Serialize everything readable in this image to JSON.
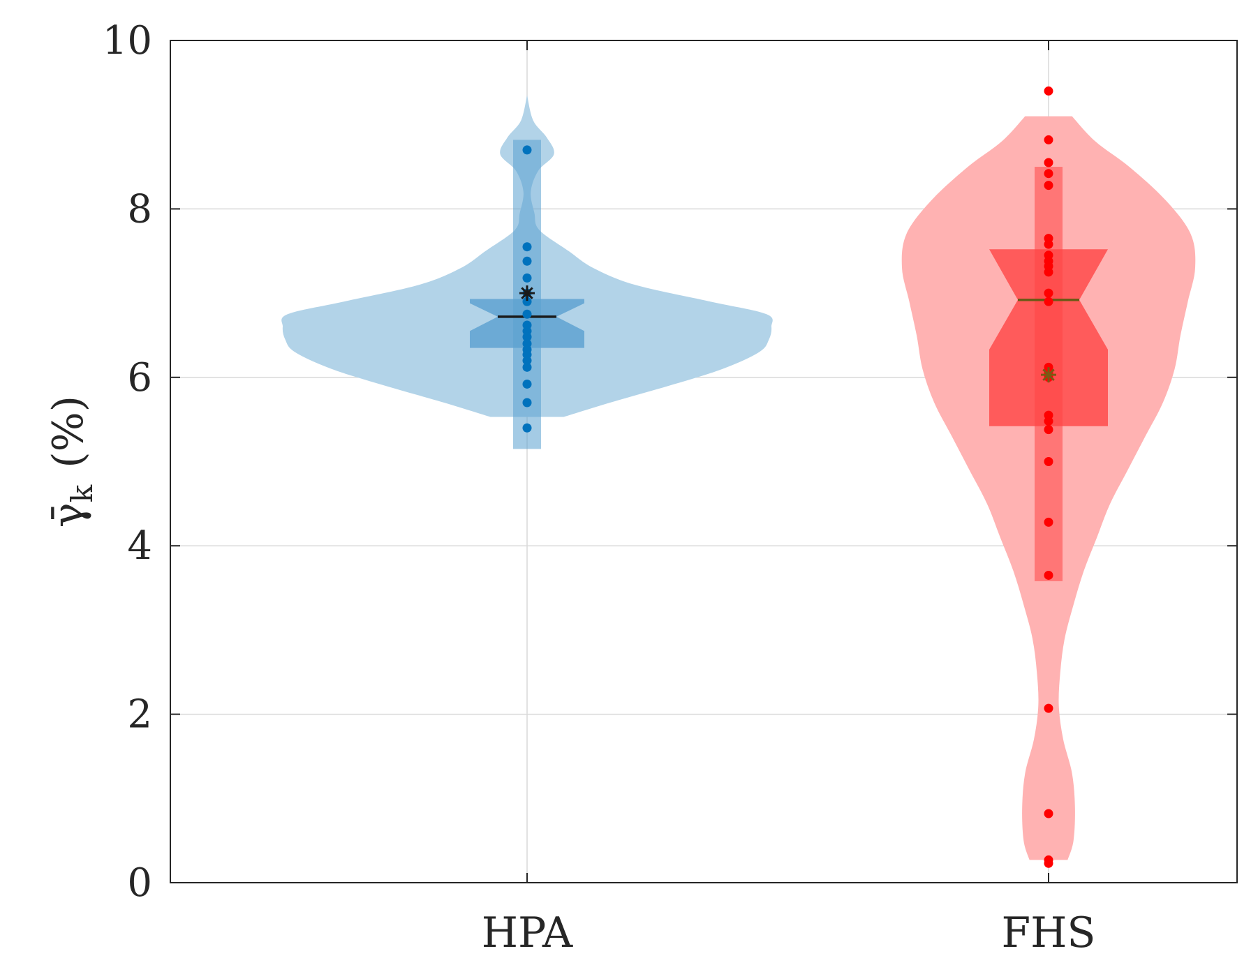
{
  "chart_data": {
    "type": "violin",
    "title": "",
    "xlabel": "",
    "ylabel": "γ̄",
    "ylabel_subscript": "k",
    "ylabel_unit": "(%)",
    "ylim": [
      0,
      10
    ],
    "yticks": [
      0,
      2,
      4,
      6,
      8,
      10
    ],
    "grid": true,
    "categories": [
      "HPA",
      "FHS"
    ],
    "series": [
      {
        "name": "HPA",
        "color": "#0072bd",
        "violin_color": "#b2d3e8",
        "box_color": "#5aa0d0",
        "points": [
          8.7,
          7.55,
          7.38,
          7.18,
          7.0,
          6.9,
          6.75,
          6.62,
          6.55,
          6.48,
          6.4,
          6.33,
          6.27,
          6.2,
          6.12,
          5.92,
          5.7,
          5.4
        ],
        "density": [
          [
            5.53,
            0.15
          ],
          [
            5.7,
            0.34
          ],
          [
            5.9,
            0.58
          ],
          [
            6.1,
            0.8
          ],
          [
            6.3,
            0.95
          ],
          [
            6.45,
            0.99
          ],
          [
            6.6,
            1.0
          ],
          [
            6.75,
            0.98
          ],
          [
            6.9,
            0.75
          ],
          [
            7.1,
            0.44
          ],
          [
            7.3,
            0.27
          ],
          [
            7.5,
            0.17
          ],
          [
            7.75,
            0.05
          ],
          [
            7.95,
            0.03
          ],
          [
            8.2,
            0.015
          ],
          [
            8.45,
            0.045
          ],
          [
            8.65,
            0.11
          ],
          [
            8.85,
            0.08
          ],
          [
            9.05,
            0.025
          ],
          [
            9.35,
            0.0
          ]
        ],
        "whisker": [
          5.15,
          8.82
        ],
        "q1": 6.35,
        "q3": 6.93,
        "median": 6.72,
        "notch": [
          6.55,
          6.88
        ],
        "mean": 7.0
      },
      {
        "name": "FHS",
        "color": "#ff0000",
        "violin_color": "#ffb2b2",
        "box_color": "#ff4545",
        "points": [
          9.4,
          8.82,
          8.55,
          8.42,
          8.28,
          7.65,
          7.58,
          7.45,
          7.38,
          7.32,
          7.25,
          7.0,
          6.9,
          6.12,
          6.05,
          6.0,
          5.55,
          5.48,
          5.38,
          5.0,
          4.28,
          3.65,
          2.07,
          0.82,
          0.27,
          0.23
        ],
        "density": [
          [
            0.27,
            0.13
          ],
          [
            0.5,
            0.17
          ],
          [
            0.9,
            0.18
          ],
          [
            1.3,
            0.16
          ],
          [
            1.7,
            0.1
          ],
          [
            2.1,
            0.07
          ],
          [
            2.5,
            0.08
          ],
          [
            2.9,
            0.11
          ],
          [
            3.3,
            0.17
          ],
          [
            3.7,
            0.24
          ],
          [
            4.1,
            0.33
          ],
          [
            4.5,
            0.42
          ],
          [
            4.9,
            0.54
          ],
          [
            5.3,
            0.66
          ],
          [
            5.7,
            0.78
          ],
          [
            6.1,
            0.86
          ],
          [
            6.5,
            0.9
          ],
          [
            6.9,
            0.95
          ],
          [
            7.3,
            1.0
          ],
          [
            7.7,
            0.97
          ],
          [
            8.1,
            0.8
          ],
          [
            8.5,
            0.55
          ],
          [
            8.8,
            0.32
          ],
          [
            9.1,
            0.16
          ]
        ],
        "whisker": [
          3.58,
          8.5
        ],
        "q1": 5.42,
        "q3": 7.52,
        "median": 6.92,
        "notch": [
          6.33,
          7.52
        ],
        "mean": 6.03
      }
    ]
  }
}
